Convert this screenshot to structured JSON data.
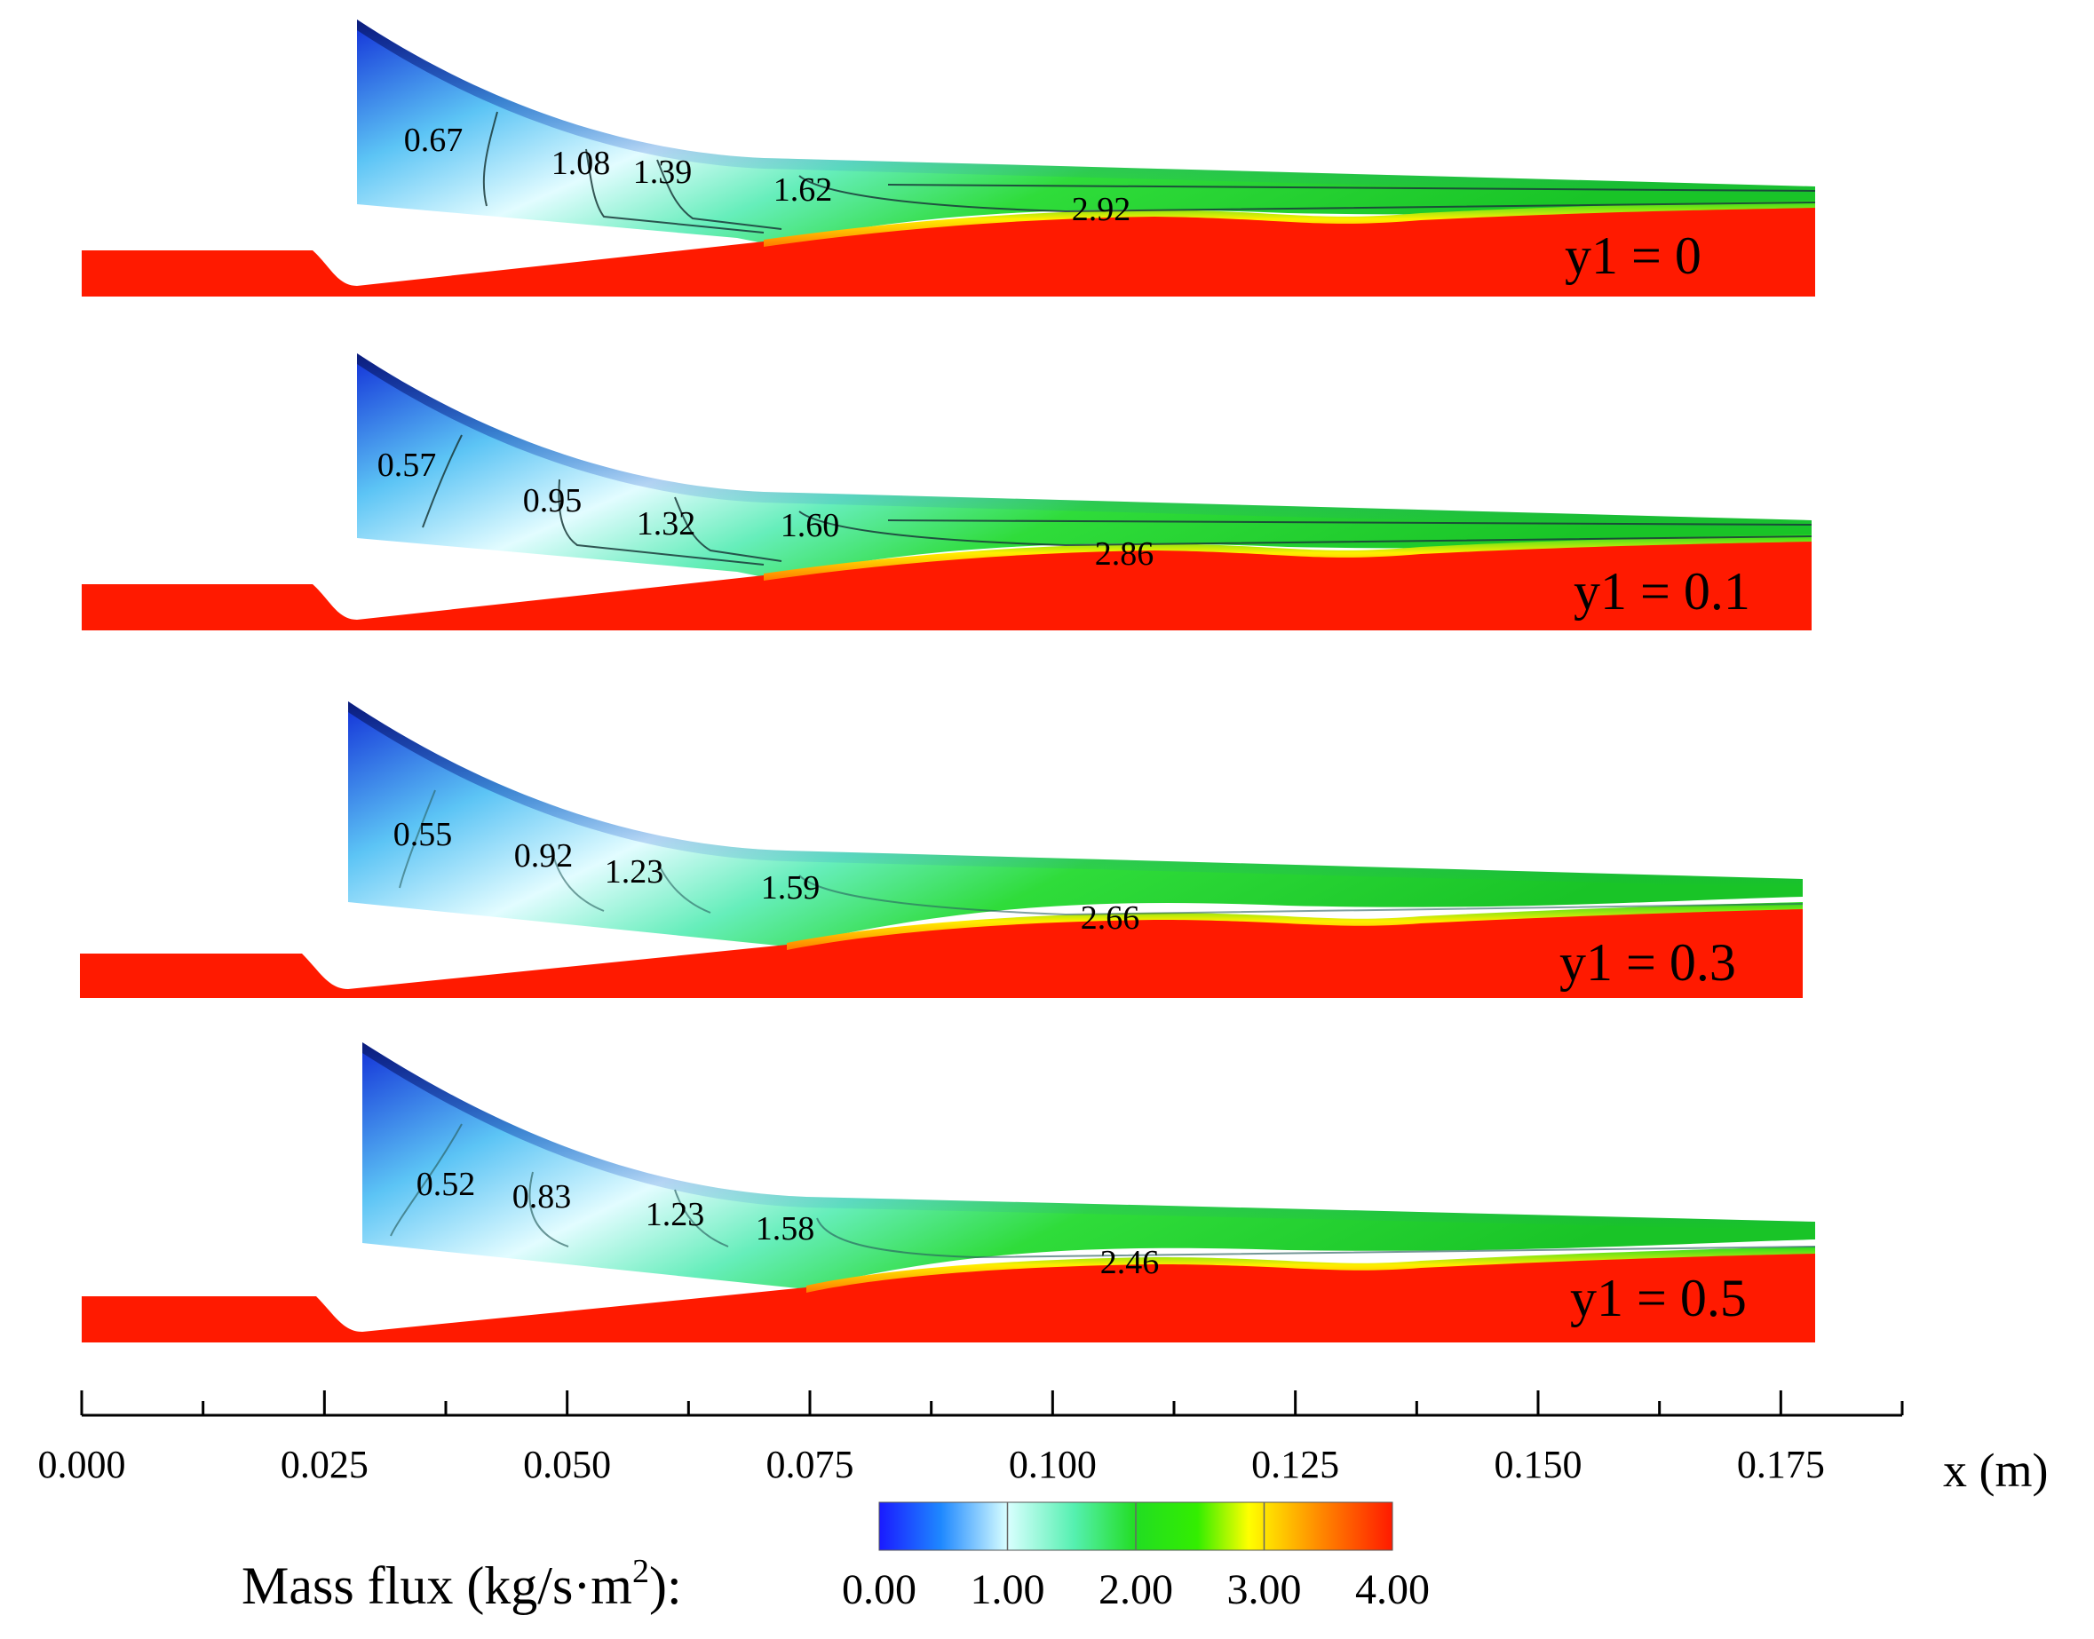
{
  "chart_data": {
    "type": "heatmap",
    "subtype": "2D contour field (mass flux) for four y1 cases",
    "colors": {
      "low": "#1533d6",
      "mid_cyan": "#bff6ff",
      "mid_green": "#22dd22",
      "high": "#ff1a00"
    },
    "panels": [
      {
        "label": "y1 = 0",
        "contour_labels": [
          "0.67",
          "1.08",
          "1.39",
          "1.62",
          "2.92"
        ]
      },
      {
        "label": "y1 = 0.1",
        "contour_labels": [
          "0.57",
          "0.95",
          "1.32",
          "1.60",
          "2.86"
        ]
      },
      {
        "label": "y1 = 0.3",
        "contour_labels": [
          "0.55",
          "0.92",
          "1.23",
          "1.59",
          "2.66"
        ]
      },
      {
        "label": "y1 = 0.5",
        "contour_labels": [
          "0.52",
          "0.83",
          "1.23",
          "1.58",
          "2.46"
        ]
      }
    ],
    "x_axis": {
      "label": "x (m)",
      "range": [
        0.0,
        0.1875
      ],
      "major_ticks": [
        0.0,
        0.025,
        0.05,
        0.075,
        0.1,
        0.125,
        0.15,
        0.175
      ],
      "tick_labels": [
        "0.000",
        "0.025",
        "0.050",
        "0.075",
        "0.100",
        "0.125",
        "0.150",
        "0.175"
      ]
    },
    "colorbar": {
      "title_prefix": "Mass flux (kg/s·m",
      "title_sup": "2",
      "title_suffix": "):",
      "range": [
        0.0,
        4.0
      ],
      "tick_values": [
        0.0,
        1.0,
        2.0,
        3.0,
        4.0
      ],
      "tick_labels": [
        "0.00",
        "1.00",
        "2.00",
        "3.00",
        "4.00"
      ]
    }
  }
}
